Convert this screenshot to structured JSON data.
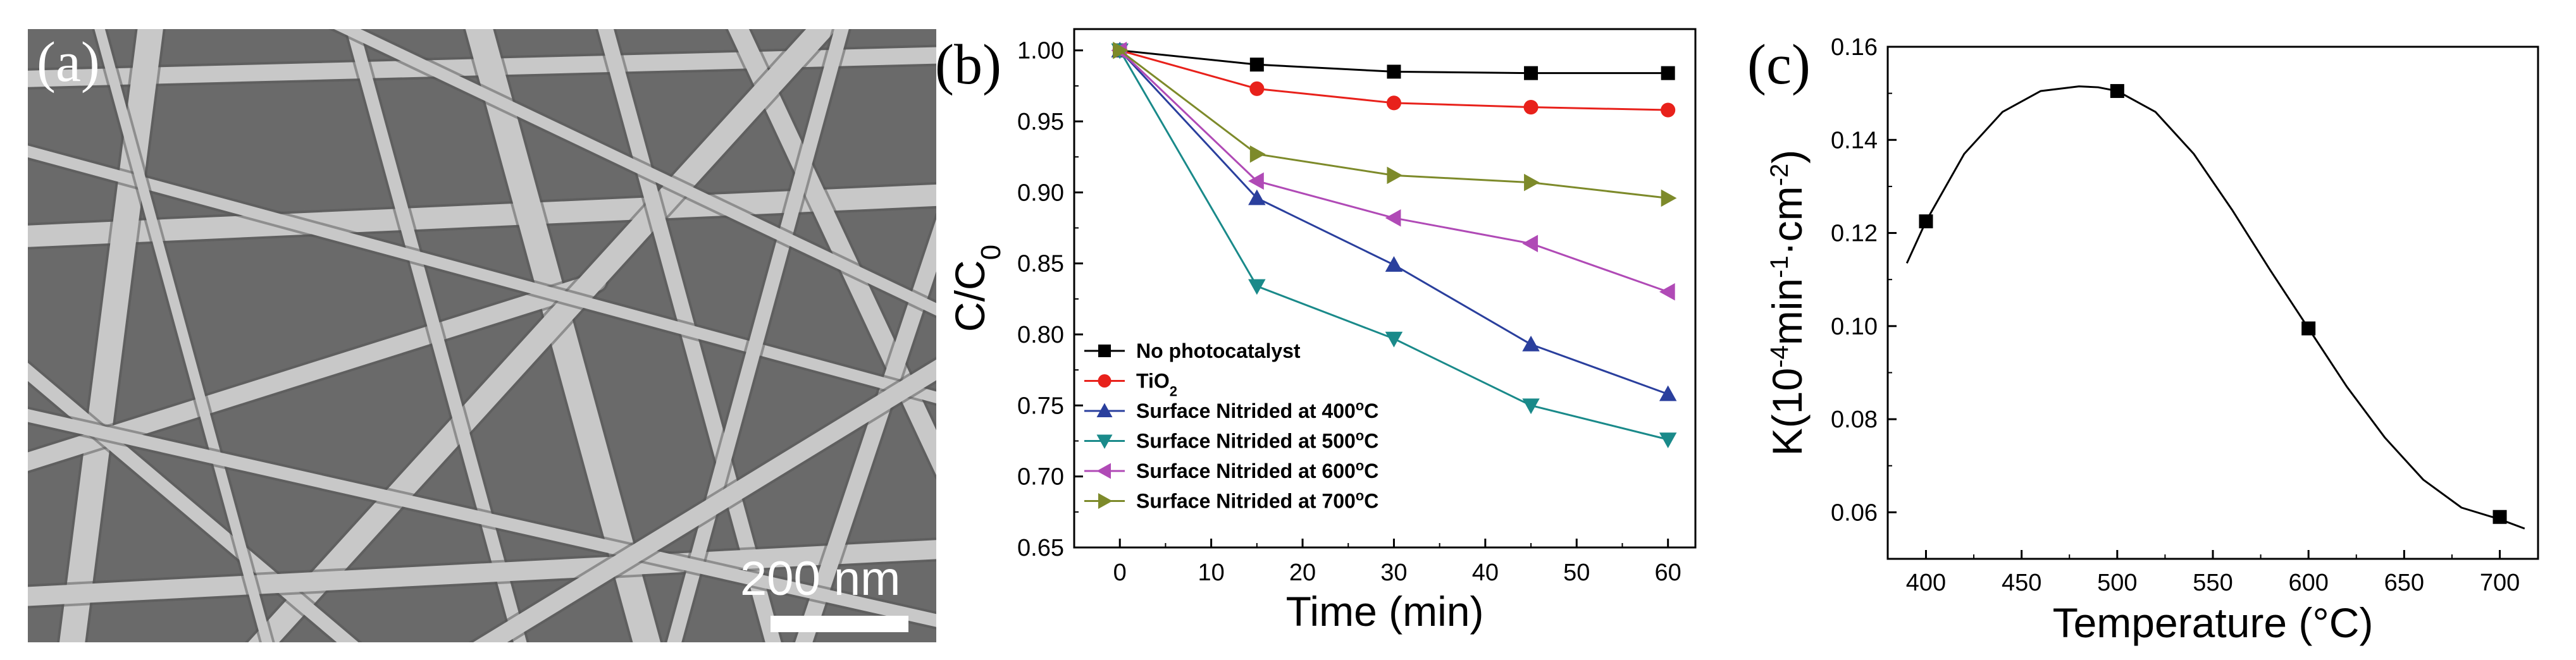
{
  "panels": {
    "a": {
      "label": "(a)",
      "scale_bar_text": "200 nm"
    },
    "b": {
      "label": "(b)"
    },
    "c": {
      "label": "(c)"
    }
  },
  "colors": {
    "axis": "#000000",
    "sem_background": "#6a6a6a",
    "fiber": "#c8c8c8"
  },
  "chart_data": [
    {
      "type": "line",
      "panel": "b",
      "title": "",
      "xlabel": "Time (min)",
      "ylabel": "C/C",
      "ylabel_sub": "0",
      "xlim": [
        -5,
        63
      ],
      "ylim": [
        0.65,
        1.015
      ],
      "x_ticks": [
        "0",
        "10",
        "20",
        "30",
        "40",
        "50",
        "60"
      ],
      "x_tick_values": [
        0,
        10,
        20,
        30,
        40,
        50,
        60
      ],
      "y_ticks": [
        "0.65",
        "0.70",
        "0.75",
        "0.80",
        "0.85",
        "0.90",
        "0.95",
        "1.00"
      ],
      "y_tick_values": [
        0.65,
        0.7,
        0.75,
        0.8,
        0.85,
        0.9,
        0.95,
        1.0
      ],
      "legend_position": "bottom-left",
      "x": [
        0,
        15,
        30,
        45,
        60
      ],
      "series": [
        {
          "name": "No photocatalyst",
          "name_suffix": "",
          "sup": "",
          "sub": "",
          "color": "#000000",
          "marker": "square",
          "values": [
            1.0,
            0.99,
            0.985,
            0.984,
            0.984
          ]
        },
        {
          "name": "TiO",
          "name_suffix": "",
          "sup": "",
          "sub": "2",
          "color": "#e8211b",
          "marker": "circle",
          "values": [
            1.0,
            0.973,
            0.963,
            0.96,
            0.958
          ]
        },
        {
          "name": "Surface Nitrided at 400",
          "name_suffix": "C",
          "sup": "o",
          "sub": "",
          "color": "#2a3f9d",
          "marker": "triangle-up",
          "values": [
            1.0,
            0.896,
            0.849,
            0.793,
            0.758
          ]
        },
        {
          "name": "Surface Nitrided at 500",
          "name_suffix": "C",
          "sup": "o",
          "sub": "",
          "color": "#1a8a8a",
          "marker": "triangle-down",
          "values": [
            1.0,
            0.834,
            0.797,
            0.75,
            0.726
          ]
        },
        {
          "name": "Surface Nitrided at 600",
          "name_suffix": "C",
          "sup": "o",
          "sub": "",
          "color": "#b04ab6",
          "marker": "triangle-left",
          "values": [
            1.0,
            0.908,
            0.882,
            0.864,
            0.83
          ]
        },
        {
          "name": "Surface Nitrided at 700",
          "name_suffix": "C",
          "sup": "o",
          "sub": "",
          "color": "#7d8a2a",
          "marker": "triangle-right",
          "values": [
            1.0,
            0.927,
            0.912,
            0.907,
            0.896
          ]
        }
      ]
    },
    {
      "type": "scatter",
      "panel": "c",
      "title": "",
      "xlabel": "Temperature (°C)",
      "ylabel_parts": [
        "K(10",
        "-4",
        "min",
        "-1",
        "·cm",
        "-2",
        ")"
      ],
      "xlim": [
        380,
        720
      ],
      "ylim": [
        0.05,
        0.16
      ],
      "x_ticks": [
        "400",
        "450",
        "500",
        "550",
        "600",
        "650",
        "700"
      ],
      "x_tick_values": [
        400,
        450,
        500,
        550,
        600,
        650,
        700
      ],
      "y_ticks": [
        "0.06",
        "0.08",
        "0.10",
        "0.12",
        "0.14",
        "0.16"
      ],
      "y_tick_values": [
        0.06,
        0.08,
        0.1,
        0.12,
        0.14,
        0.16
      ],
      "points": {
        "x": [
          400,
          500,
          600,
          700
        ],
        "y": [
          0.1225,
          0.1505,
          0.0995,
          0.059
        ]
      },
      "fit_curve": {
        "x": [
          390,
          400,
          420,
          440,
          460,
          480,
          490,
          500,
          520,
          540,
          560,
          580,
          600,
          620,
          640,
          660,
          680,
          700,
          713
        ],
        "y": [
          0.1135,
          0.1225,
          0.137,
          0.146,
          0.1505,
          0.1515,
          0.1513,
          0.1505,
          0.146,
          0.137,
          0.125,
          0.112,
          0.0995,
          0.087,
          0.076,
          0.067,
          0.061,
          0.0585,
          0.0565
        ]
      }
    }
  ]
}
